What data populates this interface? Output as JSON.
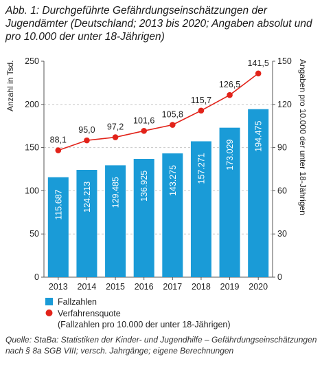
{
  "title": "Abb. 1: Durchgeführte Gefährdungseinschätzungen der Jugendämter (Deutschland; 2013 bis 2020; Angaben absolut und pro 10.000 der unter 18-Jährigen)",
  "source": "Quelle: StaBa: Statistiken der Kinder- und Jugendhilfe – Gefährdungseinschätzungen nach § 8a SGB VIII; versch. Jahrgänge; eigene Berechnungen",
  "colors": {
    "bar": "#1a9bd7",
    "line": "#e2231a",
    "grid": "#c8c8c8"
  },
  "chart_data": {
    "type": "bar",
    "categories": [
      "2013",
      "2014",
      "2015",
      "2016",
      "2017",
      "2018",
      "2019",
      "2020"
    ],
    "series": [
      {
        "name": "Fallzahlen",
        "type": "bar",
        "axis": "left",
        "values": [
          115.687,
          124.213,
          129.485,
          136.925,
          143.275,
          157.271,
          173.029,
          194.475
        ],
        "labels": [
          "115.687",
          "124.213",
          "129.485",
          "136.925",
          "143.275",
          "157.271",
          "173.029",
          "194.475"
        ]
      },
      {
        "name": "Verfahrensquote",
        "type": "line",
        "axis": "right",
        "values": [
          88.1,
          95.0,
          97.2,
          101.6,
          105.8,
          115.7,
          126.5,
          141.5
        ],
        "labels": [
          "88,1",
          "95,0",
          "97,2",
          "101,6",
          "105,8",
          "115,7",
          "126,5",
          "141,5"
        ]
      }
    ],
    "ylabel": "Anzahl in Tsd.",
    "ylim": [
      0,
      250
    ],
    "yticks": [
      "0",
      "50",
      "100",
      "150",
      "200",
      "250"
    ],
    "y2label": "Angaben pro 10.000 der unter 18-Jährigen",
    "y2lim": [
      0,
      150
    ],
    "y2ticks": [
      "0",
      "30",
      "60",
      "90",
      "120",
      "150"
    ],
    "grid": "dashed horizontal at 200",
    "legend": [
      {
        "text": "Fallzahlen",
        "marker": "square"
      },
      {
        "text": "Verfahrensquote",
        "marker": "circle"
      },
      {
        "text": "(Fallzahlen pro 10.000 der unter 18-Jährigen)",
        "marker": "none"
      }
    ],
    "legend_position": "bottom-left"
  }
}
